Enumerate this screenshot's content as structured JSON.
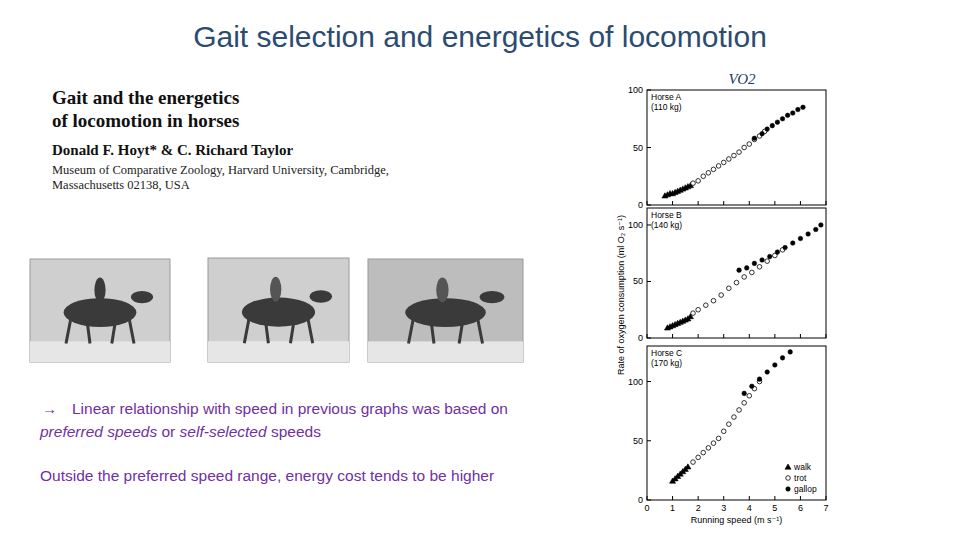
{
  "slide": {
    "title": "Gait selection and energetics of locomotion",
    "paper": {
      "title_lines": [
        "Gait and the energetics",
        "of locomotion in horses"
      ],
      "authors": "Donald F. Hoyt* & C. Richard Taylor",
      "affiliation_lines": [
        "Museum of Comparative Zoology, Harvard University, Cambridge,",
        "Massachusetts 02138, USA"
      ]
    },
    "bullet": {
      "symbol": "→",
      "lines": [
        [
          {
            "text": "Linear relationship with speed in previous graphs was based on"
          }
        ],
        [
          {
            "text": "preferred speeds",
            "style": "italic"
          },
          {
            "text": " or "
          },
          {
            "text": "self-selected",
            "style": "italic"
          },
          {
            "text": " speeds"
          }
        ]
      ]
    },
    "note": "Outside the preferred speed range,  energy cost tends to be higher",
    "chart_label": "VO2"
  },
  "chart_data": [
    {
      "type": "scatter",
      "title": "Horse A",
      "subtitle": "(110 kg)",
      "xlim": [
        0,
        7
      ],
      "xticks": [
        0,
        1,
        2,
        3,
        4,
        5,
        6,
        7
      ],
      "ylim": [
        0,
        100
      ],
      "yticks": [
        0,
        50,
        100
      ],
      "grid": false,
      "tick_labels": "y",
      "series": [
        {
          "marker": "triangle",
          "color": "#000000",
          "x": [
            0.7,
            0.8,
            0.9,
            1.0,
            1.1,
            1.2,
            1.3,
            1.4,
            1.5,
            1.6,
            1.7
          ],
          "values": [
            8,
            9,
            10,
            10,
            11,
            12,
            13,
            14,
            15,
            16,
            17
          ]
        },
        {
          "marker": "circle-open",
          "color": "#000000",
          "x": [
            1.8,
            2.0,
            2.2,
            2.4,
            2.6,
            2.8,
            3.0,
            3.2,
            3.4,
            3.6,
            3.8,
            4.0,
            4.2,
            4.4,
            4.6
          ],
          "values": [
            19,
            21,
            25,
            28,
            31,
            34,
            37,
            40,
            43,
            46,
            50,
            53,
            57,
            60,
            64
          ]
        },
        {
          "marker": "circle",
          "color": "#000000",
          "x": [
            4.2,
            4.5,
            4.7,
            4.9,
            5.1,
            5.3,
            5.5,
            5.7,
            5.9,
            6.1
          ],
          "values": [
            58,
            62,
            66,
            69,
            72,
            75,
            78,
            80,
            83,
            85
          ]
        }
      ]
    },
    {
      "type": "scatter",
      "title": "Horse B",
      "subtitle": "(140 kg)",
      "ylabel": "Rate of oxygen consumption (ml O₂ s⁻¹)",
      "xlim": [
        0,
        7
      ],
      "xticks": [
        0,
        1,
        2,
        3,
        4,
        5,
        6,
        7
      ],
      "ylim": [
        0,
        115
      ],
      "yticks": [
        0,
        50,
        100
      ],
      "grid": false,
      "tick_labels": "y",
      "series": [
        {
          "marker": "triangle",
          "color": "#000000",
          "x": [
            0.8,
            0.9,
            1.0,
            1.1,
            1.2,
            1.3,
            1.4,
            1.5,
            1.6,
            1.7
          ],
          "values": [
            9,
            10,
            11,
            12,
            13,
            14,
            15,
            16,
            17,
            19
          ]
        },
        {
          "marker": "circle-open",
          "color": "#000000",
          "x": [
            1.8,
            2.0,
            2.3,
            2.6,
            2.9,
            3.2,
            3.5,
            3.8,
            4.1,
            4.4,
            4.7,
            5.0,
            5.3
          ],
          "values": [
            22,
            25,
            29,
            33,
            38,
            44,
            49,
            54,
            58,
            63,
            68,
            73,
            78
          ]
        },
        {
          "marker": "circle",
          "color": "#000000",
          "x": [
            3.6,
            3.9,
            4.2,
            4.5,
            4.8,
            5.1,
            5.4,
            5.7,
            6.0,
            6.3,
            6.6,
            6.8
          ],
          "values": [
            60,
            62,
            66,
            69,
            72,
            76,
            80,
            84,
            88,
            92,
            96,
            100
          ]
        }
      ]
    },
    {
      "type": "scatter",
      "title": "Horse C",
      "subtitle": "(170 kg)",
      "xlabel": "Running speed (m s⁻¹)",
      "xlim": [
        0,
        7
      ],
      "xticks": [
        0,
        1,
        2,
        3,
        4,
        5,
        6,
        7
      ],
      "ylim": [
        0,
        130
      ],
      "yticks": [
        0,
        50,
        100
      ],
      "grid": false,
      "legend": "bottom-right",
      "series": [
        {
          "name": "walk",
          "marker": "triangle",
          "color": "#000000",
          "x": [
            1.0,
            1.1,
            1.2,
            1.3,
            1.4,
            1.5,
            1.6
          ],
          "values": [
            16,
            18,
            20,
            22,
            24,
            26,
            28
          ]
        },
        {
          "name": "trot",
          "marker": "circle-open",
          "color": "#000000",
          "x": [
            1.8,
            2.0,
            2.2,
            2.4,
            2.6,
            2.8,
            3.0,
            3.2,
            3.4,
            3.6,
            3.8,
            4.0,
            4.2,
            4.4
          ],
          "values": [
            32,
            36,
            40,
            44,
            48,
            52,
            58,
            64,
            70,
            76,
            82,
            88,
            94,
            100
          ]
        },
        {
          "name": "gallop",
          "marker": "circle",
          "color": "#000000",
          "x": [
            3.8,
            4.1,
            4.4,
            4.7,
            5.0,
            5.3,
            5.6
          ],
          "values": [
            90,
            96,
            102,
            108,
            114,
            120,
            125
          ]
        }
      ]
    }
  ]
}
